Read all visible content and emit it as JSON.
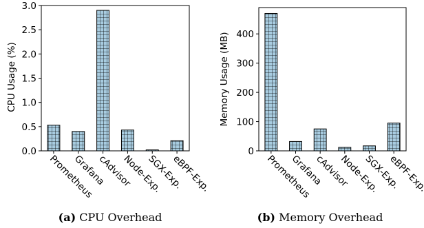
{
  "chart_data": [
    {
      "type": "bar",
      "panel_label": "(a)",
      "title": "CPU Overhead",
      "ylabel": "CPU Usage (%)",
      "xlabel": "",
      "categories": [
        "Prometheus",
        "Grafana",
        "cAdvisor",
        "Node-Exp.",
        "SGX-Exp.",
        "eBPF-Exp."
      ],
      "values": [
        0.53,
        0.4,
        2.9,
        0.43,
        0.02,
        0.21
      ],
      "ylim": [
        0,
        3.0
      ],
      "yticks": [
        "0.0",
        "0.5",
        "1.0",
        "1.5",
        "2.0",
        "2.5",
        "3.0"
      ],
      "ytick_values": [
        0,
        0.5,
        1.0,
        1.5,
        2.0,
        2.5,
        3.0
      ],
      "grid": false,
      "bar_color": "#a8cce0",
      "bar_pattern": "grid-hatch"
    },
    {
      "type": "bar",
      "panel_label": "(b)",
      "title": "Memory Overhead",
      "ylabel": "Memory Usage (MB)",
      "xlabel": "",
      "categories": [
        "Prometheus",
        "Grafana",
        "cAdvisor",
        "Node-Exp.",
        "SGX-Exp.",
        "eBPF-Exp."
      ],
      "values": [
        470,
        32,
        75,
        12,
        17,
        95
      ],
      "ylim": [
        0,
        490
      ],
      "yticks": [
        "0",
        "100",
        "200",
        "300",
        "400"
      ],
      "ytick_values": [
        0,
        100,
        200,
        300,
        400
      ],
      "grid": false,
      "bar_color": "#a8cce0",
      "bar_pattern": "grid-hatch"
    }
  ]
}
